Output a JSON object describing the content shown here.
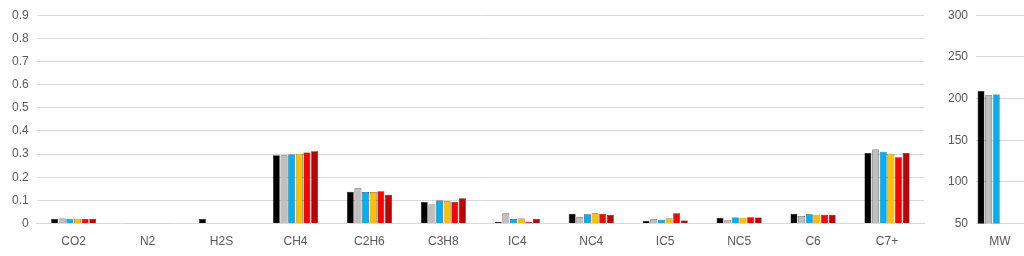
{
  "chart_data": [
    {
      "type": "bar",
      "categories": [
        "CO2",
        "N2",
        "H2S",
        "CH4",
        "C2H6",
        "C3H8",
        "IC4",
        "NC4",
        "IC5",
        "NC5",
        "C6",
        "C7+"
      ],
      "series": [
        {
          "color": "#000000",
          "values": [
            0.02,
            0.002,
            0.02,
            0.295,
            0.138,
            0.093,
            0.008,
            0.043,
            0.012,
            0.025,
            0.043,
            0.305
          ]
        },
        {
          "color": "#bfbfbf",
          "values": [
            0.022,
            0.002,
            0,
            0.295,
            0.153,
            0.083,
            0.045,
            0.028,
            0.02,
            0.015,
            0.033,
            0.32
          ]
        },
        {
          "color": "#00b0f0",
          "values": [
            0.021,
            0.002,
            0,
            0.298,
            0.137,
            0.1,
            0.02,
            0.04,
            0.017,
            0.026,
            0.04,
            0.31
          ]
        },
        {
          "color": "#ffc000",
          "values": [
            0.021,
            0.002,
            0,
            0.302,
            0.137,
            0.097,
            0.022,
            0.045,
            0.022,
            0.025,
            0.038,
            0.302
          ]
        },
        {
          "color": "#ff0000",
          "values": [
            0.02,
            0.002,
            0,
            0.307,
            0.14,
            0.093,
            0.008,
            0.043,
            0.045,
            0.027,
            0.038,
            0.287
          ]
        },
        {
          "color": "#c00000",
          "values": [
            0.02,
            0.002,
            0,
            0.312,
            0.125,
            0.11,
            0.02,
            0.037,
            0.013,
            0.026,
            0.038,
            0.305
          ]
        }
      ],
      "ylim": [
        0,
        0.9
      ],
      "yticks": [
        0,
        0.1,
        0.2,
        0.3,
        0.4,
        0.5,
        0.6,
        0.7,
        0.8,
        0.9
      ],
      "grid": true
    },
    {
      "type": "bar",
      "categories": [
        "MW"
      ],
      "series": [
        {
          "color": "#000000",
          "values": [
            209
          ]
        },
        {
          "color": "#bfbfbf",
          "values": [
            204
          ]
        },
        {
          "color": "#00b0f0",
          "values": [
            205
          ]
        },
        {
          "color": "#ffc000",
          "values": [
            null
          ]
        },
        {
          "color": "#ff0000",
          "values": [
            null
          ]
        },
        {
          "color": "#c00000",
          "values": [
            null
          ]
        }
      ],
      "ylim": [
        50,
        300
      ],
      "yticks": [
        50,
        100,
        150,
        200,
        250,
        300
      ],
      "grid": true
    }
  ]
}
